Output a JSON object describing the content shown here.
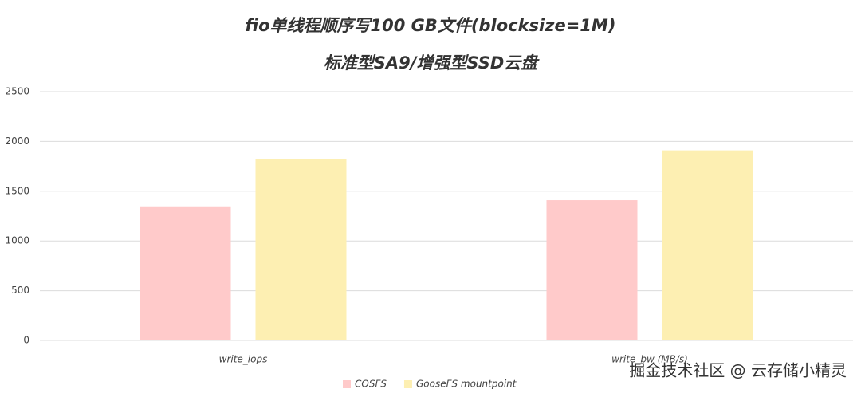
{
  "chart_data": {
    "type": "bar",
    "title": "fio单线程顺序写100 GB文件(blocksize=1M)",
    "subtitle": "标准型SA9/增强型SSD云盘",
    "categories": [
      "write_iops",
      "write_bw (MB/s)"
    ],
    "series": [
      {
        "name": "COSFS",
        "color": "#ffcaca",
        "values": [
          1340,
          1410
        ]
      },
      {
        "name": "GooseFS mountpoint",
        "color": "#fdefb2",
        "values": [
          1820,
          1910
        ]
      }
    ],
    "ylim": [
      0,
      2500
    ],
    "yticks": [
      0,
      500,
      1000,
      1500,
      2000,
      2500
    ],
    "grid": true,
    "legend": "bottom",
    "annotation": "掘金技术社区 @ 云存储小精灵"
  }
}
